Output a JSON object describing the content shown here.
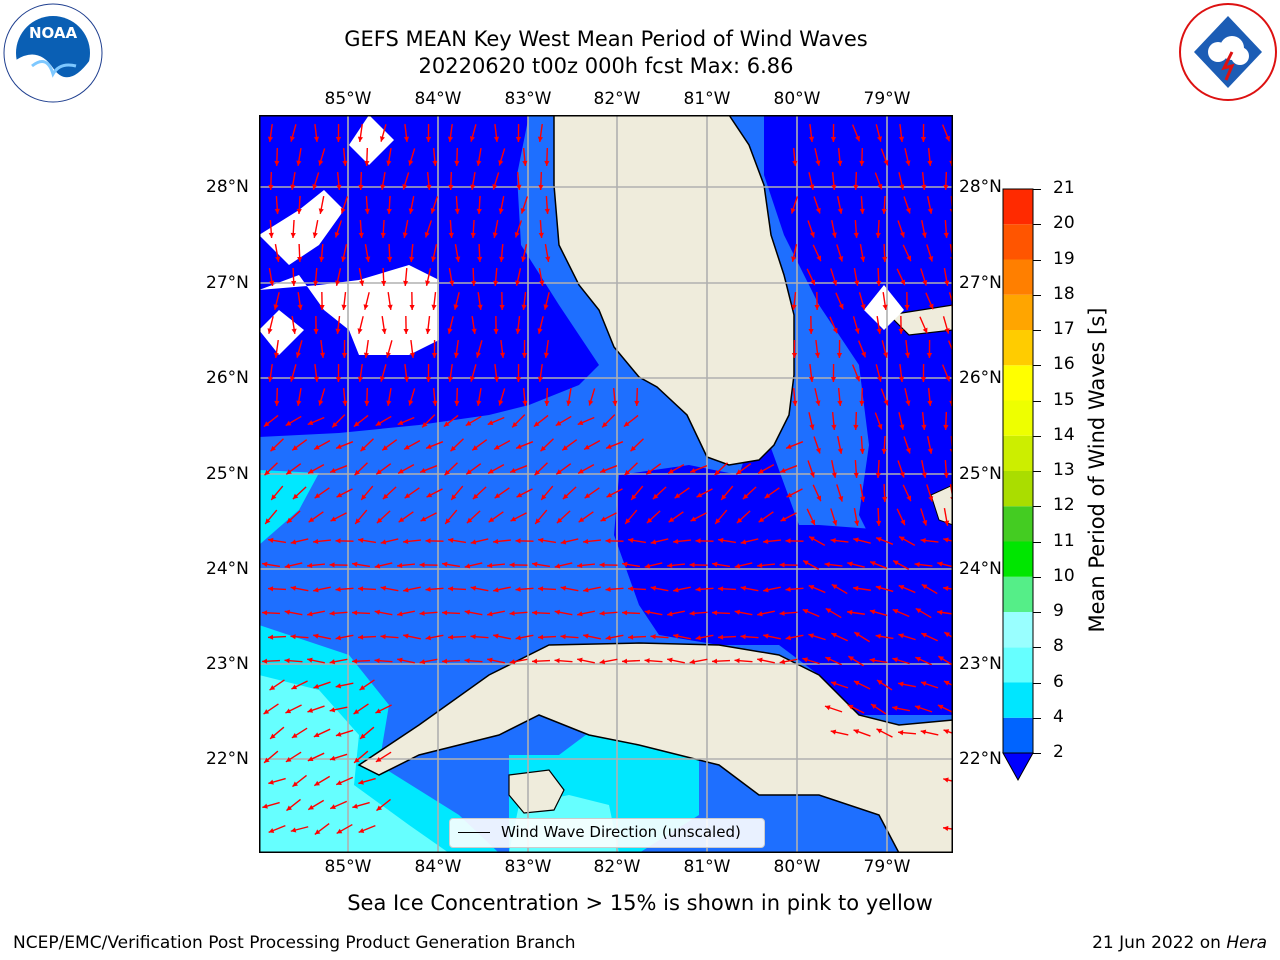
{
  "title_line1": "GEFS MEAN Key West Mean Period of Wind Waves",
  "title_line2": "20220620 t00z 000h fcst   Max: 6.86",
  "longitude_labels": [
    "85°W",
    "84°W",
    "83°W",
    "82°W",
    "81°W",
    "80°W",
    "79°W"
  ],
  "latitude_labels": [
    "28°N",
    "27°N",
    "26°N",
    "25°N",
    "24°N",
    "23°N",
    "22°N"
  ],
  "legend_text": "Wind Wave Direction (unscaled)",
  "colorbar": {
    "label": "Mean Period of Wind Waves [s]",
    "ticks": [
      "2",
      "4",
      "6",
      "8",
      "9",
      "10",
      "11",
      "12",
      "13",
      "14",
      "15",
      "16",
      "17",
      "18",
      "19",
      "20",
      "21"
    ],
    "colors": [
      "#0064ff",
      "#00e6ff",
      "#66ffff",
      "#99ffff",
      "#55ee88",
      "#00e600",
      "#44cc22",
      "#aadd00",
      "#ccee00",
      "#eeff00",
      "#ffff00",
      "#ffcc00",
      "#ffa500",
      "#ff7f00",
      "#ff5500",
      "#ff2a00",
      "#ff0000"
    ],
    "extend_color": "#0000ff"
  },
  "colors": {
    "deep_blue": "#0000ff",
    "mid_blue": "#1e6fff",
    "cyan": "#00e8ff",
    "light_cyan": "#66ffff",
    "land": "#efecdc",
    "arrow": "#ff0000"
  },
  "logos": {
    "left": "NOAA",
    "right": "NATIONAL WEATHER SERVICE"
  },
  "footer_caption": "Sea Ice Concentration > 15% is shown in pink to yellow",
  "footer_left": "NCEP/EMC/Verification Post Processing Product Generation Branch",
  "footer_right_date": "21 Jun 2022 on ",
  "footer_right_host": "Hera"
}
